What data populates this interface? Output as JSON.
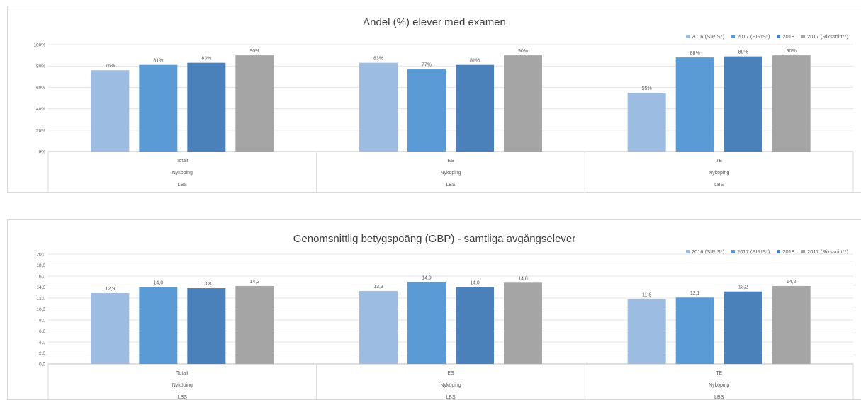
{
  "legend": [
    {
      "label": "2016 (SIRIS*)",
      "color": "#9dbce1"
    },
    {
      "label": "2017 (SIRIS*)",
      "color": "#5b9bd5"
    },
    {
      "label": "2018",
      "color": "#4a81bb"
    },
    {
      "label": "2017 (Rikssnitt**)",
      "color": "#a5a5a5"
    }
  ],
  "chart_data": [
    {
      "type": "bar",
      "title": "Andel (%) elever med examen",
      "categories": [
        "Totalt",
        "ES",
        "TE"
      ],
      "category_levels": [
        [
          "Nyköping",
          "Nyköping",
          "Nyköping"
        ],
        [
          "LBS",
          "LBS",
          "LBS"
        ]
      ],
      "yticks": [
        "0%",
        "20%",
        "40%",
        "60%",
        "80%",
        "100%"
      ],
      "ylim": [
        0,
        100
      ],
      "grid": true,
      "legend_position": "top-right",
      "series": [
        {
          "name": "2016 (SIRIS*)",
          "values": [
            76,
            83,
            55
          ],
          "labels": [
            "76%",
            "83%",
            "55%"
          ]
        },
        {
          "name": "2017 (SIRIS*)",
          "values": [
            81,
            77,
            88
          ],
          "labels": [
            "81%",
            "77%",
            "88%"
          ]
        },
        {
          "name": "2018",
          "values": [
            83,
            81,
            89
          ],
          "labels": [
            "83%",
            "81%",
            "89%"
          ]
        },
        {
          "name": "2017 (Rikssnitt**)",
          "values": [
            90,
            90,
            90
          ],
          "labels": [
            "90%",
            "90%",
            "90%"
          ]
        }
      ]
    },
    {
      "type": "bar",
      "title": "Genomsnittlig betygspoäng (GBP) - samtliga avgångselever",
      "categories": [
        "Totalt",
        "ES",
        "TE"
      ],
      "category_levels": [
        [
          "Nyköping",
          "Nyköping",
          "Nyköping"
        ],
        [
          "LBS",
          "LBS",
          "LBS"
        ]
      ],
      "yticks": [
        "0,0",
        "2,0",
        "4,0",
        "6,0",
        "8,0",
        "10,0",
        "12,0",
        "14,0",
        "16,0",
        "18,0",
        "20,0"
      ],
      "ylim": [
        0,
        20
      ],
      "grid": true,
      "legend_position": "top-right",
      "series": [
        {
          "name": "2016 (SIRIS*)",
          "values": [
            12.9,
            13.3,
            11.8
          ],
          "labels": [
            "12,9",
            "13,3",
            "11,8"
          ]
        },
        {
          "name": "2017 (SIRIS*)",
          "values": [
            14.0,
            14.9,
            12.1
          ],
          "labels": [
            "14,0",
            "14,9",
            "12,1"
          ]
        },
        {
          "name": "2018",
          "values": [
            13.8,
            14.0,
            13.2
          ],
          "labels": [
            "13,8",
            "14,0",
            "13,2"
          ]
        },
        {
          "name": "2017 (Rikssnitt**)",
          "values": [
            14.2,
            14.8,
            14.2
          ],
          "labels": [
            "14,2",
            "14,8",
            "14,2"
          ]
        }
      ]
    }
  ]
}
